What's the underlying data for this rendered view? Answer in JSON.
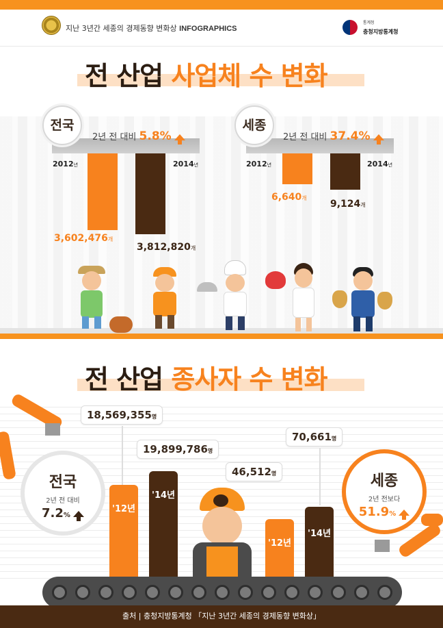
{
  "header": {
    "series_text": "지난 3년간 세종의 경제동향 변화상",
    "series_tag": "INFOGRAPHICS",
    "agency_small": "통계청",
    "agency_name": "충청지방통계청"
  },
  "section1": {
    "title_a": "전 산업",
    "title_b": "사업체 수 변화",
    "national": {
      "label": "전국",
      "compare_text": "2년 전 대비",
      "rate": "5.8",
      "rate_unit": "%",
      "year1": "2012",
      "year2": "2014",
      "year_suffix": "년",
      "value1": "3,602,476",
      "value2": "3,812,820",
      "unit": "개"
    },
    "sejong": {
      "label": "세종",
      "compare_text": "2년 전 대비",
      "rate": "37.4",
      "rate_unit": "%",
      "year1": "2012",
      "year2": "2014",
      "year_suffix": "년",
      "value1": "6,640",
      "value2": "9,124",
      "unit": "개"
    }
  },
  "section2": {
    "title_a": "전 산업",
    "title_b": "종사자 수 변화",
    "national": {
      "label": "전국",
      "compare_text": "2년 전 대비",
      "rate": "7.2",
      "rate_unit": "%",
      "value1": "18,569,355",
      "value2": "19,899,786",
      "unit": "명",
      "bar1_label": "'12년",
      "bar2_label": "'14년"
    },
    "sejong": {
      "label": "세종",
      "compare_text": "2년 전보다",
      "rate": "51.9",
      "rate_unit": "%",
      "value1": "46,512",
      "value2": "70,661",
      "unit": "명",
      "bar1_label": "'12년",
      "bar2_label": "'14년"
    }
  },
  "footer": {
    "source": "출처 | 충청지방통계청 「지난 3년간 세종의 경제동향 변화상」"
  },
  "colors": {
    "orange": "#f7821e",
    "brown": "#4a2a12"
  }
}
